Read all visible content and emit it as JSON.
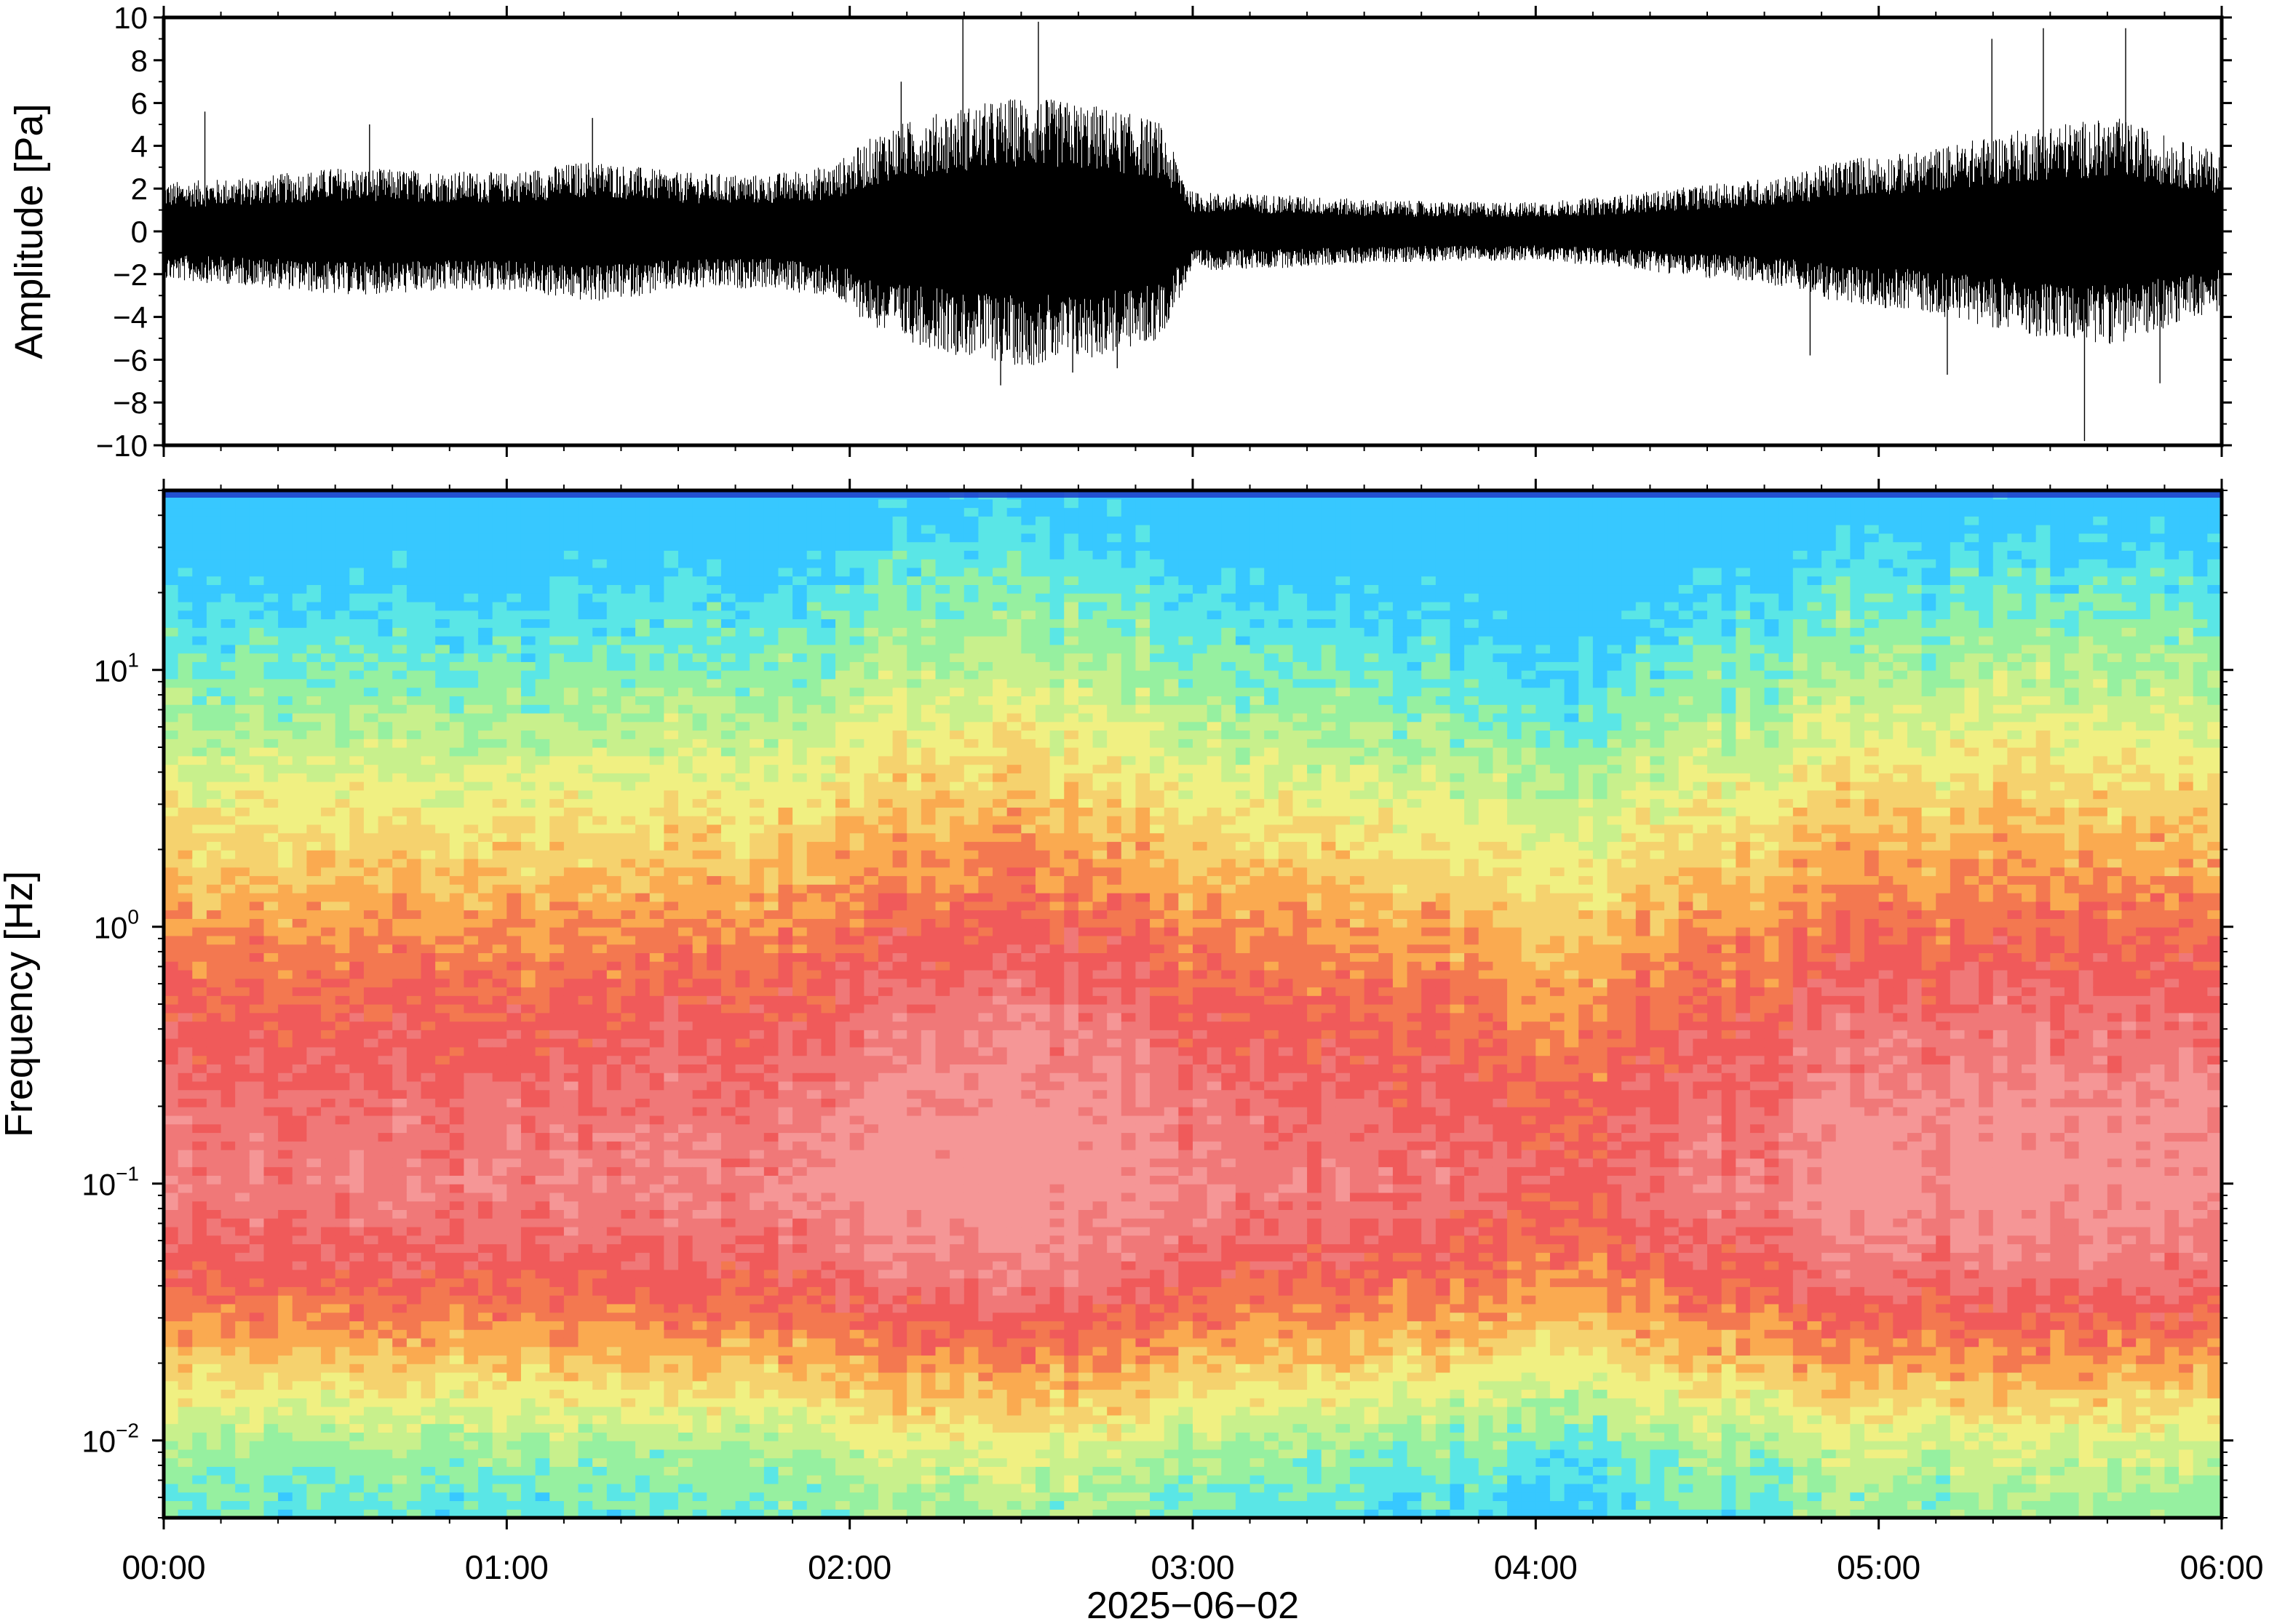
{
  "chart_data": [
    {
      "type": "line",
      "panel": "waveform",
      "ylabel": "Amplitude [Pa]",
      "ylim": [
        -10,
        10
      ],
      "yticks": [
        -10,
        -8,
        -6,
        -4,
        -2,
        0,
        2,
        4,
        6,
        8,
        10
      ],
      "ytick_labels": [
        "−10",
        "−8",
        "−6",
        "−4",
        "−2",
        "0",
        "2",
        "4",
        "6",
        "8",
        "10"
      ],
      "xlim_hours": [
        0,
        6
      ],
      "series": [
        {
          "color": "#000000",
          "envelope_time_hours": [
            0.0,
            0.25,
            0.5,
            0.75,
            1.0,
            1.25,
            1.5,
            1.75,
            1.95,
            2.1,
            2.3,
            2.5,
            2.7,
            2.9,
            3.0,
            3.25,
            3.5,
            3.75,
            4.0,
            4.2,
            4.5,
            4.75,
            4.9,
            5.1,
            5.3,
            5.5,
            5.7,
            5.9,
            6.0
          ],
          "envelope_amplitude_pa": [
            2.0,
            2.2,
            2.6,
            2.5,
            2.4,
            2.9,
            2.4,
            2.3,
            2.7,
            4.2,
            5.0,
            5.5,
            5.2,
            4.5,
            1.6,
            1.5,
            1.3,
            1.2,
            1.2,
            1.4,
            1.9,
            2.3,
            3.0,
            3.2,
            3.8,
            4.4,
            4.6,
            3.6,
            3.2
          ],
          "peaks": [
            {
              "t": 0.12,
              "a": 5.6
            },
            {
              "t": 0.6,
              "a": 5.0
            },
            {
              "t": 1.25,
              "a": 5.3
            },
            {
              "t": 2.15,
              "a": 7.0
            },
            {
              "t": 2.33,
              "a": 10.0
            },
            {
              "t": 2.44,
              "a": -7.2
            },
            {
              "t": 2.55,
              "a": 9.8
            },
            {
              "t": 2.65,
              "a": -6.6
            },
            {
              "t": 2.78,
              "a": -6.4
            },
            {
              "t": 4.8,
              "a": -5.8
            },
            {
              "t": 5.2,
              "a": -6.7
            },
            {
              "t": 5.33,
              "a": 9.0
            },
            {
              "t": 5.48,
              "a": 9.5
            },
            {
              "t": 5.6,
              "a": -9.8
            },
            {
              "t": 5.72,
              "a": 9.5
            },
            {
              "t": 5.82,
              "a": -7.1
            }
          ]
        }
      ]
    },
    {
      "type": "heatmap",
      "panel": "spectrogram",
      "ylabel": "Frequency [Hz]",
      "yscale": "log",
      "ylim": [
        0.005,
        50
      ],
      "yticks": [
        0.01,
        0.1,
        1,
        10
      ],
      "ytick_labels": [
        {
          "base": "10",
          "exp": "−2"
        },
        {
          "base": "10",
          "exp": "−1"
        },
        {
          "base": "10",
          "exp": "0"
        },
        {
          "base": "10",
          "exp": "1"
        }
      ],
      "xlim_hours": [
        0,
        6
      ],
      "colormap": [
        "#37c8ff",
        "#5ae6e6",
        "#96f0a0",
        "#c8f08c",
        "#f0f082",
        "#f5d26e",
        "#faaa50",
        "#f37850",
        "#f05a5a",
        "#f07878",
        "#f59696"
      ],
      "relative_level_profile": {
        "log10_freq": [
          -2.3,
          -2.05,
          -1.8,
          -1.55,
          -1.3,
          -1.0,
          -0.7,
          -0.4,
          -0.1,
          0.2,
          0.5,
          0.8,
          1.1,
          1.4,
          1.6
        ],
        "level": [
          0.15,
          0.25,
          0.45,
          0.65,
          0.8,
          0.9,
          0.85,
          0.78,
          0.68,
          0.55,
          0.42,
          0.28,
          0.16,
          0.04,
          -0.05
        ]
      },
      "time_activity": {
        "t_hours": [
          0.0,
          1.0,
          1.9,
          2.0,
          2.3,
          2.5,
          2.8,
          3.0,
          3.5,
          4.0,
          4.2,
          4.3,
          4.75,
          4.85,
          5.2,
          5.5,
          6.0
        ],
        "offset": [
          0.0,
          0.0,
          0.02,
          0.08,
          0.12,
          0.12,
          0.08,
          0.0,
          -0.03,
          -0.08,
          -0.12,
          -0.06,
          0.02,
          0.1,
          0.06,
          0.1,
          0.05
        ]
      }
    }
  ],
  "xaxis": {
    "tick_labels": [
      "00:00",
      "01:00",
      "02:00",
      "03:00",
      "04:00",
      "05:00",
      "06:00"
    ],
    "tick_hours": [
      0,
      1,
      2,
      3,
      4,
      5,
      6
    ],
    "minor_tick_minutes": 10,
    "date_label": "2025−06−02"
  }
}
